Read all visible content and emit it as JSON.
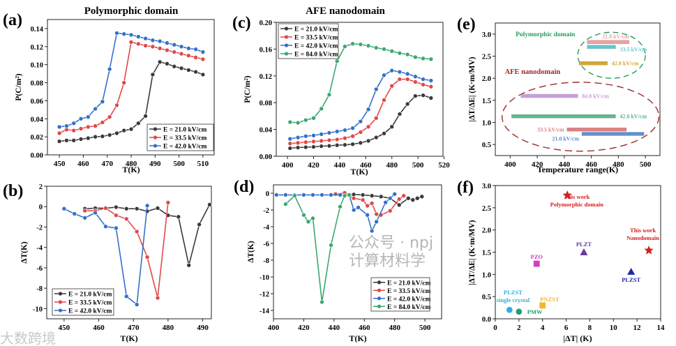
{
  "watermarks": {
    "left": "大数跨境",
    "right": "公众号 · npj计算材料学"
  },
  "chart_data": [
    {
      "id": "a",
      "panel_label": "(a)",
      "type": "line",
      "title": "Polymorphic domain",
      "xlabel": "T(K)",
      "ylabel": "P(C/m²)",
      "xlim": [
        445,
        514.7
      ],
      "ylim": [
        0,
        0.15
      ],
      "xticks": [
        450,
        460,
        470,
        480,
        490,
        500,
        510
      ],
      "yticks": [
        0,
        0.02,
        0.04,
        0.06,
        0.08,
        0.1,
        0.12,
        0.14
      ],
      "ydec": 2,
      "xdec": 0,
      "legend_pos": "bottom-right",
      "series": [
        {
          "name": "E = 21.0 kV/cm",
          "color": "#3a3a3a",
          "x": [
            450,
            453,
            456,
            459,
            462,
            465,
            468,
            471,
            474,
            477,
            480,
            483,
            486,
            489,
            492,
            495,
            498,
            501,
            504,
            507,
            510
          ],
          "y": [
            0.015,
            0.016,
            0.016,
            0.0175,
            0.0185,
            0.02,
            0.0205,
            0.022,
            0.024,
            0.027,
            0.0285,
            0.035,
            0.043,
            0.089,
            0.103,
            0.101,
            0.098,
            0.096,
            0.094,
            0.092,
            0.089
          ]
        },
        {
          "name": "E = 33.5 kV/cm",
          "color": "#e04848",
          "x": [
            450,
            453,
            456,
            459,
            462,
            465,
            468,
            471,
            474,
            477,
            480,
            483,
            486,
            489,
            492,
            495,
            498,
            501,
            504,
            507,
            510
          ],
          "y": [
            0.024,
            0.028,
            0.027,
            0.029,
            0.031,
            0.032,
            0.036,
            0.042,
            0.055,
            0.08,
            0.125,
            0.123,
            0.121,
            0.12,
            0.118,
            0.116,
            0.114,
            0.112,
            0.11,
            0.108,
            0.106
          ]
        },
        {
          "name": "E = 42.0 kV/cm",
          "color": "#3470c8",
          "x": [
            450,
            453,
            456,
            459,
            462,
            465,
            468,
            471,
            474,
            477,
            480,
            483,
            486,
            489,
            492,
            495,
            498,
            501,
            504,
            507,
            510
          ],
          "y": [
            0.031,
            0.032,
            0.035,
            0.04,
            0.042,
            0.051,
            0.059,
            0.095,
            0.135,
            0.134,
            0.133,
            0.131,
            0.129,
            0.127,
            0.126,
            0.124,
            0.122,
            0.12,
            0.118,
            0.117,
            0.114
          ]
        }
      ]
    },
    {
      "id": "b",
      "panel_label": "(b)",
      "type": "line",
      "title": "",
      "xlabel": "T(K)",
      "ylabel": "ΔT(K)",
      "xlim": [
        445,
        492.5
      ],
      "ylim": [
        -11,
        2
      ],
      "xticks": [
        450,
        460,
        470,
        480,
        490
      ],
      "yticks": [
        2,
        0,
        -2,
        -4,
        -6,
        -8,
        -10
      ],
      "ydec": 0,
      "xdec": 0,
      "legend_pos": "bottom-left",
      "series": [
        {
          "name": "E = 21.0 kV/cm",
          "color": "#3a3a3a",
          "x": [
            456,
            459,
            462,
            465,
            468,
            471,
            474,
            477,
            480,
            483,
            486,
            489,
            492
          ],
          "y": [
            -0.2,
            -0.15,
            -0.15,
            -0.05,
            -0.2,
            -0.2,
            -0.45,
            -0.15,
            -0.85,
            -1.0,
            -5.75,
            -1.75,
            0.2
          ]
        },
        {
          "name": "E = 33.5 kV/cm",
          "color": "#e04848",
          "x": [
            456,
            459,
            462,
            465,
            468,
            471,
            474,
            477,
            480
          ],
          "y": [
            -0.4,
            -0.4,
            -0.15,
            -0.85,
            -1.2,
            -2.45,
            -4.95,
            -8.95,
            0.4
          ]
        },
        {
          "name": "E = 42.0 kV/cm",
          "color": "#3470c8",
          "x": [
            450,
            453,
            456,
            459,
            462,
            465,
            468,
            471,
            474
          ],
          "y": [
            -0.2,
            -0.7,
            -1.1,
            -0.6,
            -1.95,
            -2.1,
            -8.8,
            -9.6,
            0.1
          ]
        }
      ]
    },
    {
      "id": "c",
      "panel_label": "(c)",
      "type": "line",
      "title": "AFE nanodomain",
      "xlabel": "T(K)",
      "ylabel": "P(C/m²)",
      "xlim": [
        391.4,
        519.2
      ],
      "ylim": [
        0,
        0.2
      ],
      "xticks": [
        400,
        420,
        440,
        460,
        480,
        500,
        520
      ],
      "yticks": [
        0,
        0.04,
        0.08,
        0.12,
        0.16,
        0.2
      ],
      "ydec": 2,
      "xdec": 0,
      "legend_pos": "top-left",
      "series": [
        {
          "name": "E = 21.0 kV/cm",
          "color": "#3a3a3a",
          "x": [
            402,
            408,
            414,
            420,
            426,
            432,
            438,
            444,
            450,
            456,
            462,
            468,
            474,
            480,
            486,
            492,
            498,
            504,
            510
          ],
          "y": [
            0.012,
            0.013,
            0.0135,
            0.014,
            0.015,
            0.0155,
            0.0165,
            0.017,
            0.018,
            0.02,
            0.023,
            0.028,
            0.034,
            0.044,
            0.063,
            0.078,
            0.09,
            0.091,
            0.087
          ]
        },
        {
          "name": "E = 33.5 kV/cm",
          "color": "#e04848",
          "x": [
            402,
            408,
            414,
            420,
            426,
            432,
            438,
            444,
            450,
            456,
            462,
            468,
            474,
            480,
            486,
            492,
            498,
            504,
            510
          ],
          "y": [
            0.019,
            0.02,
            0.021,
            0.022,
            0.023,
            0.024,
            0.025,
            0.027,
            0.03,
            0.036,
            0.044,
            0.057,
            0.084,
            0.105,
            0.115,
            0.115,
            0.111,
            0.107,
            0.104
          ]
        },
        {
          "name": "E = 42.0 kV/cm",
          "color": "#3470c8",
          "x": [
            402,
            408,
            414,
            420,
            426,
            432,
            438,
            444,
            450,
            456,
            462,
            468,
            474,
            480,
            486,
            492,
            498,
            504,
            510
          ],
          "y": [
            0.026,
            0.028,
            0.03,
            0.031,
            0.033,
            0.035,
            0.037,
            0.039,
            0.042,
            0.052,
            0.07,
            0.1,
            0.121,
            0.128,
            0.126,
            0.123,
            0.119,
            0.115,
            0.113
          ]
        },
        {
          "name": "E = 84.0 kV/cm",
          "color": "#3aa870",
          "x": [
            402,
            408,
            414,
            420,
            426,
            432,
            438,
            444,
            450,
            456,
            462,
            468,
            474,
            480,
            486,
            492,
            498,
            504,
            510
          ],
          "y": [
            0.051,
            0.05,
            0.054,
            0.057,
            0.071,
            0.092,
            0.142,
            0.164,
            0.168,
            0.167,
            0.165,
            0.162,
            0.16,
            0.157,
            0.154,
            0.152,
            0.148,
            0.146,
            0.145
          ]
        }
      ]
    },
    {
      "id": "d",
      "panel_label": "(d)",
      "type": "line",
      "title": "",
      "xlabel": "T(K)",
      "ylabel": "ΔT(K)",
      "xlim": [
        400,
        511
      ],
      "ylim": [
        -15,
        1
      ],
      "xticks": [
        400,
        420,
        440,
        460,
        480,
        500
      ],
      "yticks": [
        0,
        -2,
        -4,
        -6,
        -8,
        -10,
        -12,
        -14
      ],
      "ydec": 0,
      "xdec": 0,
      "legend_pos": "bottom-right",
      "series": [
        {
          "name": "E = 21.0 kV/cm",
          "color": "#3a3a3a",
          "x": [
            447,
            453,
            459,
            465,
            471,
            477,
            483,
            489,
            492,
            495,
            498
          ],
          "y": [
            -0.1,
            -0.15,
            -0.2,
            -0.3,
            -0.4,
            -0.6,
            -1.4,
            -0.6,
            -0.8,
            -0.6,
            -0.4
          ]
        },
        {
          "name": "E = 33.5 kV/cm",
          "color": "#e04848",
          "x": [
            441,
            447,
            453,
            459,
            462,
            465,
            468,
            471,
            477,
            483,
            486
          ],
          "y": [
            -0.1,
            0.05,
            -0.6,
            -0.8,
            -1.5,
            -1.2,
            -2.5,
            -2.6,
            -2.1,
            -0.7,
            -0.3
          ]
        },
        {
          "name": "E = 42.0 kV/cm",
          "color": "#3470c8",
          "x": [
            402,
            408,
            414,
            420,
            426,
            432,
            438,
            444,
            450,
            453,
            456,
            462,
            465,
            468,
            474,
            477,
            480
          ],
          "y": [
            -0.2,
            -0.2,
            -0.2,
            -0.2,
            -0.2,
            -0.2,
            -0.2,
            -0.2,
            -0.2,
            -2.0,
            -1.7,
            -2.6,
            -4.5,
            -3.4,
            -1.1,
            -0.6,
            -0.1
          ]
        },
        {
          "name": "E = 84.0 kV/cm",
          "color": "#3aa870",
          "x": [
            408,
            414,
            420,
            423,
            426,
            432,
            438,
            444,
            447,
            450
          ],
          "y": [
            -1.3,
            -0.3,
            -2.6,
            -3.4,
            -3.0,
            -13.0,
            -6.2,
            -1.6,
            -0.3,
            -0.2
          ]
        }
      ]
    },
    {
      "id": "e",
      "panel_label": "(e)",
      "type": "range-bar",
      "title": "",
      "xlabel": "Temperature range(K)",
      "ylabel": "|ΔT/ΔE| (K·m/MV)",
      "xlim": [
        389,
        510.8
      ],
      "ylim": [
        0.25,
        3.25
      ],
      "xticks": [
        400,
        420,
        440,
        460,
        480,
        500
      ],
      "yticks": [
        0.5,
        1.0,
        1.5,
        2.0,
        2.5,
        3.0
      ],
      "ydec": 1,
      "xdec": 0,
      "groups": [
        {
          "name": "Polymorphic domain",
          "color": "#2a9a5a"
        },
        {
          "name": "AFE nanodomain",
          "color": "#a02828"
        }
      ],
      "bars": [
        {
          "label": "21.0 kV/cm",
          "group": 0,
          "x0": 457,
          "x1": 488,
          "y": 2.82,
          "color": "#eba0a0"
        },
        {
          "label": "33.5 kV/cm",
          "group": 0,
          "x0": 457,
          "x1": 478,
          "y": 2.71,
          "color": "#5cc8d0"
        },
        {
          "label": "42.0 kV/cm",
          "group": 0,
          "x0": 451,
          "x1": 472,
          "y": 2.34,
          "color": "#d4a830"
        },
        {
          "label": "84.0 kV/cm",
          "group": 1,
          "x0": 408,
          "x1": 450,
          "y": 1.6,
          "color": "#c8a0e0"
        },
        {
          "label": "42.0 kV/cm",
          "group": 1,
          "x0": 401,
          "x1": 478,
          "y": 1.14,
          "color": "#5cb88a"
        },
        {
          "label": "33.5 kV/cm",
          "group": 1,
          "x0": 442,
          "x1": 486,
          "y": 0.84,
          "color": "#e08080"
        },
        {
          "label": "21.0 kV/cm",
          "group": 1,
          "x0": 453,
          "x1": 499,
          "y": 0.74,
          "color": "#6090d0"
        }
      ]
    },
    {
      "id": "f",
      "panel_label": "(f)",
      "type": "scatter",
      "title": "",
      "xlabel": "|ΔT| (K)",
      "ylabel": "|ΔT/ΔE| (K·m/MV)",
      "xlim": [
        0,
        14
      ],
      "ylim": [
        0,
        3
      ],
      "xticks": [
        0,
        2,
        4,
        6,
        8,
        10,
        12,
        14
      ],
      "yticks": [
        0,
        0.5,
        1.0,
        1.5,
        2.0,
        2.5,
        3.0
      ],
      "ydec": 1,
      "xdec": 0,
      "points": [
        {
          "label": "This work Polymorphic domain",
          "x": 6.1,
          "y": 2.78,
          "marker": "star",
          "color": "#d42020"
        },
        {
          "label": "This work Nanodomain",
          "x": 13,
          "y": 1.54,
          "marker": "star",
          "color": "#d42020"
        },
        {
          "label": "PLZT",
          "x": 7.5,
          "y": 1.5,
          "marker": "triangle",
          "color": "#6a3a98"
        },
        {
          "label": "PZO",
          "x": 3.5,
          "y": 1.24,
          "marker": "square",
          "color": "#d040c0"
        },
        {
          "label": "PLZST",
          "x": 11.5,
          "y": 1.06,
          "marker": "triangle",
          "color": "#1a2aa8"
        },
        {
          "label": "PLZST single crystal",
          "x": 1.2,
          "y": 0.2,
          "marker": "circle",
          "color": "#30b0e0"
        },
        {
          "label": "PMW",
          "x": 2,
          "y": 0.16,
          "marker": "circle",
          "color": "#20a070"
        },
        {
          "label": "PNZST",
          "x": 4,
          "y": 0.3,
          "marker": "square",
          "color": "#f0b830"
        }
      ]
    }
  ]
}
